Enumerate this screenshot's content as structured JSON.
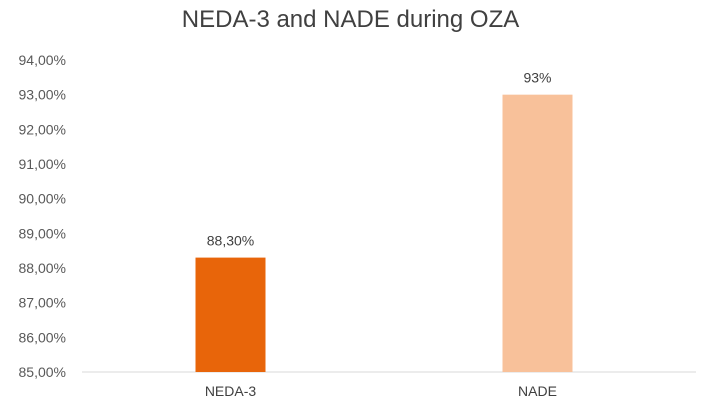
{
  "chart_data": {
    "type": "bar",
    "title": "NEDA-3 and NADE during OZA",
    "categories": [
      "NEDA-3",
      "NADE"
    ],
    "values": [
      88.3,
      93.0
    ],
    "data_labels": [
      "88,30%",
      "93%"
    ],
    "bar_colors": [
      "#E8650A",
      "#F8C19A"
    ],
    "ylim": [
      85,
      94
    ],
    "yticks": [
      85,
      86,
      87,
      88,
      89,
      90,
      91,
      92,
      93,
      94
    ],
    "ytick_labels": [
      "85,00%",
      "86,00%",
      "87,00%",
      "88,00%",
      "89,00%",
      "90,00%",
      "91,00%",
      "92,00%",
      "93,00%",
      "94,00%"
    ],
    "xlabel": "",
    "ylabel": "",
    "grid": false,
    "legend": "none"
  }
}
